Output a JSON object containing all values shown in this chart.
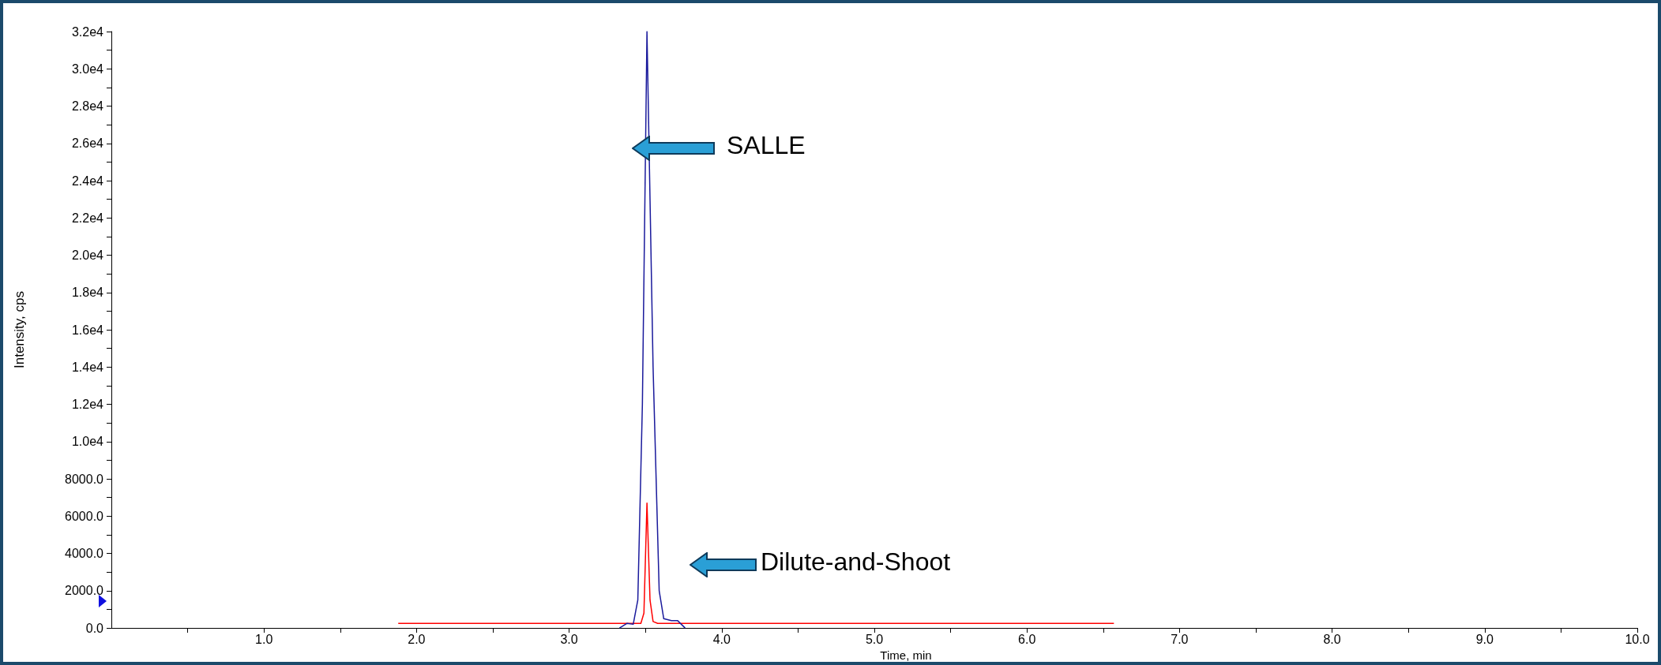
{
  "chart_data": {
    "type": "line",
    "xlabel": "Time, min",
    "ylabel": "Intensity, cps",
    "annotations": [
      "SALLE",
      "Dilute-and-Shoot"
    ],
    "marker": "none",
    "line_style": "solid",
    "xlim": [
      0,
      10
    ],
    "xticks": [
      {
        "value": 0.5,
        "label": null
      },
      {
        "value": 1,
        "label": "1.0"
      },
      {
        "value": 1.5,
        "label": null
      },
      {
        "value": 2,
        "label": "2.0"
      },
      {
        "value": 2.5,
        "label": null
      },
      {
        "value": 3,
        "label": "3.0"
      },
      {
        "value": 3.5,
        "label": null
      },
      {
        "value": 4,
        "label": "4.0"
      },
      {
        "value": 4.5,
        "label": null
      },
      {
        "value": 5,
        "label": "5.0"
      },
      {
        "value": 5.5,
        "label": null
      },
      {
        "value": 6,
        "label": "6.0"
      },
      {
        "value": 6.5,
        "label": null
      },
      {
        "value": 7,
        "label": "7.0"
      },
      {
        "value": 7.5,
        "label": null
      },
      {
        "value": 8,
        "label": "8.0"
      },
      {
        "value": 8.5,
        "label": null
      },
      {
        "value": 9,
        "label": "9.0"
      },
      {
        "value": 9.5,
        "label": null
      },
      {
        "value": 10,
        "label": "10.0"
      }
    ],
    "ylim": [
      0,
      32000
    ],
    "yticks": [
      {
        "value": 0,
        "label": "0.0"
      },
      {
        "value": 1000,
        "label": null
      },
      {
        "value": 2000,
        "label": "2000.0"
      },
      {
        "value": 3000,
        "label": null
      },
      {
        "value": 4000,
        "label": "4000.0"
      },
      {
        "value": 5000,
        "label": null
      },
      {
        "value": 6000,
        "label": "6000.0"
      },
      {
        "value": 7000,
        "label": null
      },
      {
        "value": 8000,
        "label": "8000.0"
      },
      {
        "value": 9000,
        "label": null
      },
      {
        "value": 10000,
        "label": "1.0e4"
      },
      {
        "value": 11000,
        "label": null
      },
      {
        "value": 12000,
        "label": "1.2e4"
      },
      {
        "value": 13000,
        "label": null
      },
      {
        "value": 14000,
        "label": "1.4e4"
      },
      {
        "value": 15000,
        "label": null
      },
      {
        "value": 16000,
        "label": "1.6e4"
      },
      {
        "value": 17000,
        "label": null
      },
      {
        "value": 18000,
        "label": "1.8e4"
      },
      {
        "value": 19000,
        "label": null
      },
      {
        "value": 20000,
        "label": "2.0e4"
      },
      {
        "value": 21000,
        "label": null
      },
      {
        "value": 22000,
        "label": "2.2e4"
      },
      {
        "value": 23000,
        "label": null
      },
      {
        "value": 24000,
        "label": "2.4e4"
      },
      {
        "value": 25000,
        "label": null
      },
      {
        "value": 26000,
        "label": "2.6e4"
      },
      {
        "value": 27000,
        "label": null
      },
      {
        "value": 28000,
        "label": "2.8e4"
      },
      {
        "value": 29000,
        "label": null
      },
      {
        "value": 30000,
        "label": "3.0e4"
      },
      {
        "value": 31000,
        "label": null
      },
      {
        "value": 32000,
        "label": "3.2e4"
      }
    ],
    "series": [
      {
        "color": "#ff0000",
        "x": [
          1.88,
          3.47,
          3.49,
          3.51,
          3.53,
          3.55,
          3.58,
          3.62,
          6.57
        ],
        "values": [
          250,
          250,
          800,
          6700,
          1500,
          350,
          250,
          250,
          250
        ]
      },
      {
        "color": "#1a1a9c",
        "x": [
          3.33,
          3.38,
          3.42,
          3.45,
          3.48,
          3.51,
          3.55,
          3.59,
          3.62,
          3.67,
          3.71,
          3.76
        ],
        "values": [
          0,
          250,
          200,
          1500,
          12000,
          32000,
          14000,
          2000,
          500,
          400,
          400,
          0
        ]
      }
    ]
  }
}
